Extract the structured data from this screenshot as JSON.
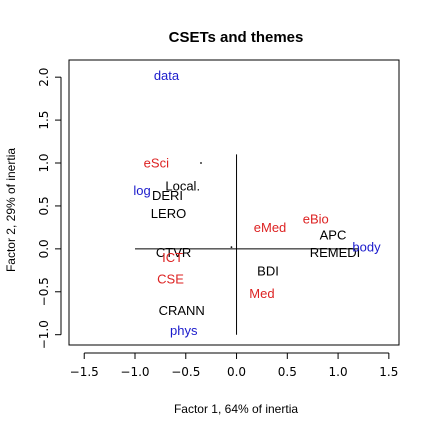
{
  "chart_data": {
    "type": "scatter",
    "title": "CSETs and themes",
    "xlabel": "Factor 1, 64% of inertia",
    "ylabel": "Factor 2, 29% of inertia",
    "xlim": [
      -1.65,
      1.6
    ],
    "ylim": [
      -1.12,
      2.2
    ],
    "xticks": [
      "−1.5",
      "−1.0",
      "−0.5",
      "0.0",
      "0.5",
      "1.0",
      "1.5"
    ],
    "xtick_values": [
      -1.5,
      -1.0,
      -0.5,
      0.0,
      0.5,
      1.0,
      1.5
    ],
    "yticks": [
      "−1.0",
      "−0.5",
      "0.0",
      "0.5",
      "1.0",
      "1.5",
      "2.0"
    ],
    "ytick_values": [
      -1.0,
      -0.5,
      0.0,
      0.5,
      1.0,
      1.5,
      2.0
    ],
    "colors": {
      "red": "#dd2222",
      "blue": "#1a1acc",
      "black": "#000000"
    },
    "points": [
      {
        "label": "data",
        "x": -0.69,
        "y": 2.02,
        "color": "blue"
      },
      {
        "label": "eSci",
        "x": -0.79,
        "y": 1.0,
        "color": "red"
      },
      {
        "label": "Local.",
        "x": -0.53,
        "y": 0.73,
        "color": "black"
      },
      {
        "label": "log",
        "x": -0.93,
        "y": 0.68,
        "color": "blue"
      },
      {
        "label": "DERI",
        "x": -0.68,
        "y": 0.62,
        "color": "black"
      },
      {
        "label": "LERO",
        "x": -0.67,
        "y": 0.41,
        "color": "black"
      },
      {
        "label": "eMed",
        "x": 0.33,
        "y": 0.25,
        "color": "red"
      },
      {
        "label": "eBio",
        "x": 0.78,
        "y": 0.35,
        "color": "red"
      },
      {
        "label": "APC",
        "x": 0.95,
        "y": 0.16,
        "color": "black"
      },
      {
        "label": "CTVR",
        "x": -0.62,
        "y": -0.04,
        "color": "black"
      },
      {
        "label": "ICT",
        "x": -0.63,
        "y": -0.1,
        "color": "red"
      },
      {
        "label": "REMEDI",
        "x": 0.97,
        "y": -0.04,
        "color": "black"
      },
      {
        "label": "body",
        "x": 1.28,
        "y": 0.02,
        "color": "blue"
      },
      {
        "label": "BDI",
        "x": 0.31,
        "y": -0.26,
        "color": "black"
      },
      {
        "label": "CSE",
        "x": -0.65,
        "y": -0.35,
        "color": "red"
      },
      {
        "label": "Med",
        "x": 0.25,
        "y": -0.52,
        "color": "red"
      },
      {
        "label": "CRANN",
        "x": -0.54,
        "y": -0.72,
        "color": "black"
      },
      {
        "label": "phys",
        "x": -0.52,
        "y": -0.95,
        "color": "blue"
      }
    ]
  }
}
